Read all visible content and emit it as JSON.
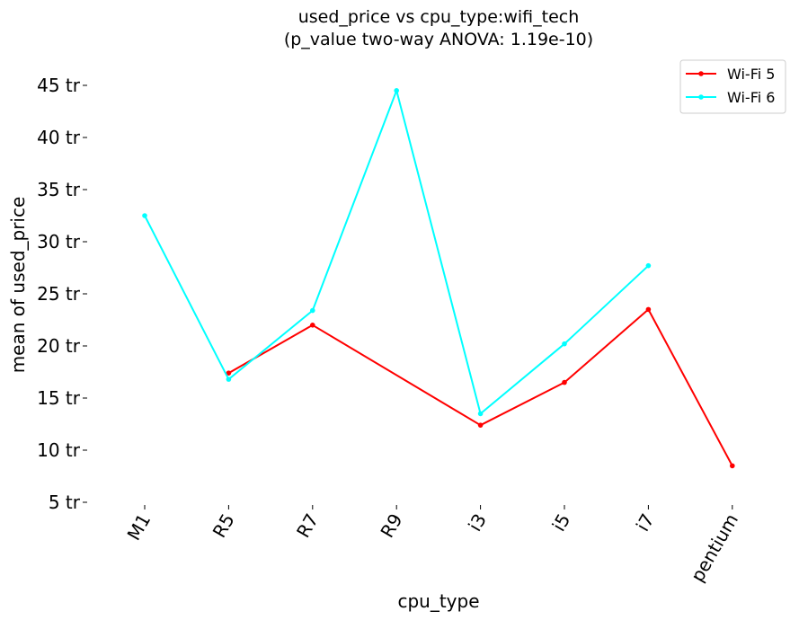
{
  "chart_data": {
    "type": "line",
    "title": "used_price vs cpu_type:wifi_tech",
    "subtitle": "(p_value two-way ANOVA: 1.19e-10)",
    "xlabel": "cpu_type",
    "ylabel": "mean of used_price",
    "categories": [
      "M1",
      "R5",
      "R7",
      "R9",
      "i3",
      "i5",
      "i7",
      "pentium"
    ],
    "y_ticks": [
      5,
      10,
      15,
      20,
      25,
      30,
      35,
      40,
      45
    ],
    "y_tick_suffix": " tr",
    "ylim": [
      5,
      45
    ],
    "grid": false,
    "legend_position": "top-right",
    "series": [
      {
        "name": "Wi-Fi 5",
        "color": "#ff0000",
        "values": [
          null,
          17.4,
          22.0,
          null,
          12.4,
          16.5,
          23.5,
          8.5
        ]
      },
      {
        "name": "Wi-Fi 6",
        "color": "#00ffff",
        "values": [
          32.5,
          16.8,
          23.4,
          44.5,
          13.5,
          20.2,
          27.7,
          null
        ]
      }
    ]
  }
}
